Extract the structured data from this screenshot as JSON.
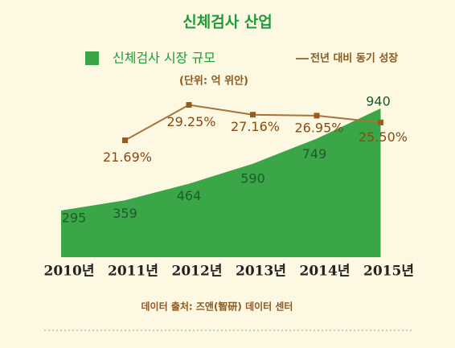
{
  "chart_data": {
    "type": "area",
    "title": "신체검사 산업",
    "subtitle": "(단위: 억 위안)",
    "source": "데이터 출처: 즈앤(智研) 데이터 센터",
    "categories": [
      "2010년",
      "2011년",
      "2012년",
      "2013년",
      "2014년",
      "2015년"
    ],
    "series": [
      {
        "name": "신체검사 시장 규모",
        "color": "#3aa647",
        "values": [
          295,
          359,
          464,
          590,
          749,
          940
        ]
      },
      {
        "name": "전년 대비 동기 성장",
        "color": "#a8733a",
        "axis": "y2",
        "values": [
          null,
          21.69,
          29.25,
          27.16,
          26.95,
          25.5
        ],
        "value_labels": [
          null,
          "21.69%",
          "29.25%",
          "27.16%",
          "26.95%",
          "25.50%"
        ]
      }
    ],
    "ylim": [
      0,
      1000
    ],
    "y2lim": [
      0,
      35
    ]
  }
}
